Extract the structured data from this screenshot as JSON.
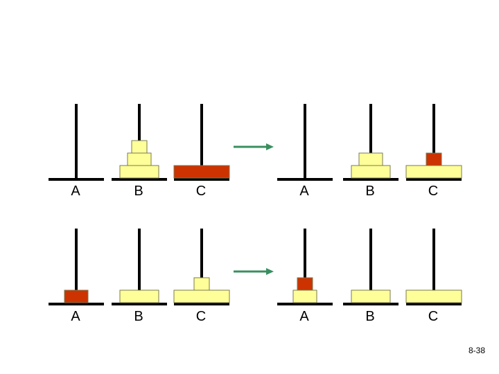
{
  "colors": {
    "pole": "#000000",
    "disk_fill": "#ffff99",
    "disk_stroke": "#7a7a50",
    "moved_disk_fill": "#cc3300",
    "arrow": "#3a8f5f"
  },
  "peg_labels": [
    "A",
    "B",
    "C"
  ],
  "diagram": {
    "description_rows": [
      {
        "row": 1,
        "before": {
          "A": [],
          "B": [
            {
              "size": "large",
              "moved": false
            },
            {
              "size": "medium",
              "moved": false
            },
            {
              "size": "small",
              "moved": false
            }
          ],
          "C": [
            {
              "size": "xlarge",
              "moved": true
            }
          ]
        },
        "after": {
          "A": [],
          "B": [
            {
              "size": "large",
              "moved": false
            },
            {
              "size": "medium",
              "moved": false
            }
          ],
          "C": [
            {
              "size": "xlarge",
              "moved": false
            },
            {
              "size": "small",
              "moved": true
            }
          ]
        }
      },
      {
        "row": 2,
        "before": {
          "A": [
            {
              "size": "medium",
              "moved": true
            }
          ],
          "B": [
            {
              "size": "large",
              "moved": false
            }
          ],
          "C": [
            {
              "size": "xlarge",
              "moved": false
            },
            {
              "size": "small",
              "moved": false
            }
          ]
        },
        "after": {
          "A": [
            {
              "size": "medium",
              "moved": false
            },
            {
              "size": "small",
              "moved": true
            }
          ],
          "B": [
            {
              "size": "large",
              "moved": false
            }
          ],
          "C": [
            {
              "size": "xlarge",
              "moved": false
            }
          ]
        }
      }
    ]
  },
  "slide_number": "8-38"
}
